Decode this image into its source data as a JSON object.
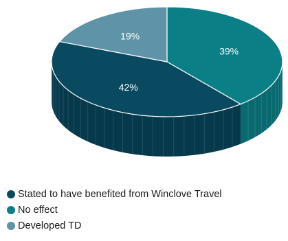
{
  "chart_data": {
    "type": "pie",
    "style": "3d",
    "slices": [
      {
        "label": "Stated to have benefited from Winclove Travel",
        "value": 42,
        "display": "42%",
        "color": "#0a4a61",
        "side_color": "#06394b"
      },
      {
        "label": "No effect",
        "value": 39,
        "display": "39%",
        "color": "#0b7f86",
        "side_color": "#086a70"
      },
      {
        "label": "Developed TD",
        "value": 19,
        "display": "19%",
        "color": "#5f93a8",
        "side_color": "#4c7d91"
      }
    ],
    "legend_position": "bottom-left"
  }
}
